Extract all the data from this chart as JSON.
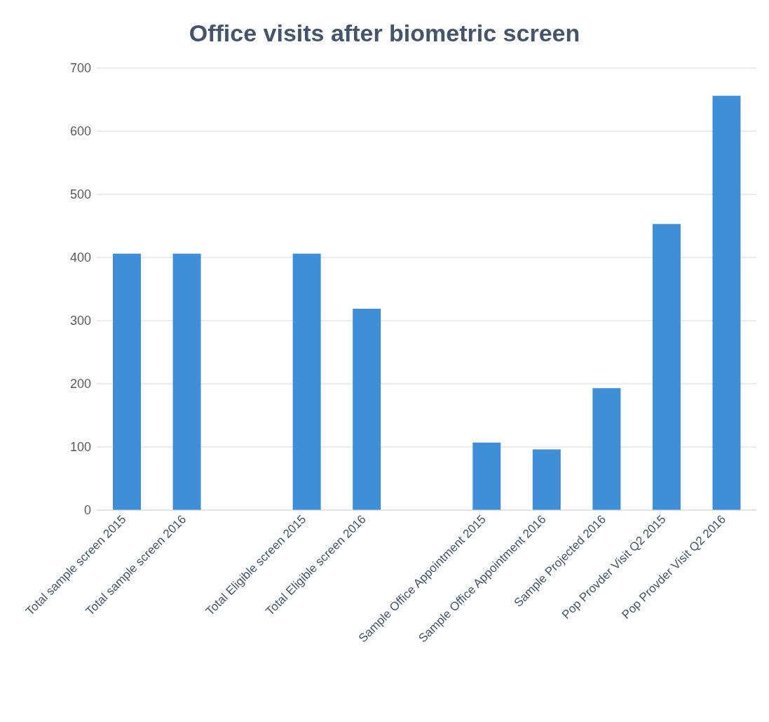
{
  "chart_data": {
    "type": "bar",
    "title": "Office visits after biometric screen",
    "categories": [
      "Total sample screen 2015",
      "Total sample screen 2016",
      null,
      "Total Eligible screen 2015",
      "Total Eligible screen 2016",
      null,
      "Sample Office Appointment 2015",
      "Sample Office Appointment 2016",
      "Sample Projected 2016",
      "Pop Provder Visit Q2 2015",
      "Pop Provder Visit Q2 2016"
    ],
    "values": [
      406,
      406,
      null,
      406,
      319,
      null,
      107,
      96,
      193,
      453,
      656
    ],
    "color": "#3f8fd8",
    "ylim": [
      0,
      700
    ],
    "yticks": [
      0,
      100,
      200,
      300,
      400,
      500,
      600,
      700
    ],
    "grid": "y",
    "legend": false
  }
}
